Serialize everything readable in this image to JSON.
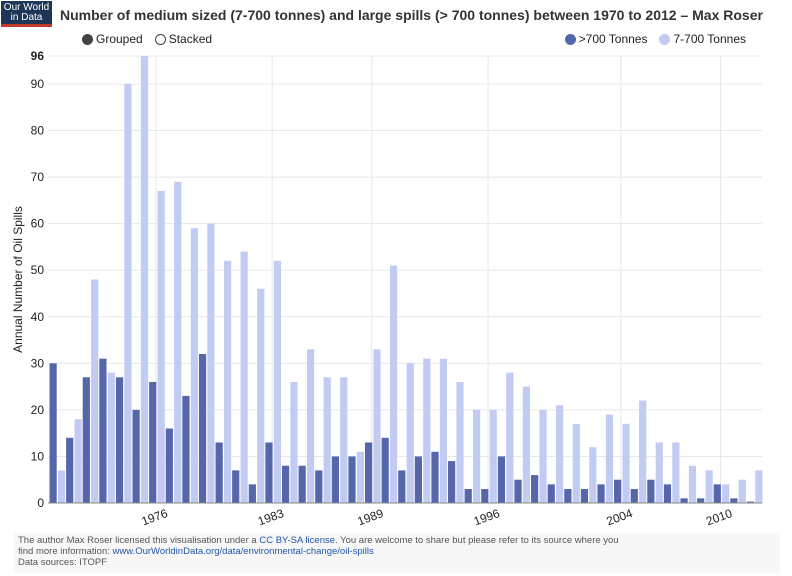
{
  "logo": {
    "line1": "Our World",
    "line2": "in Data"
  },
  "title": "Number of medium sized (7-700 tonnes) and large spills (> 700 tonnes) between 1970 to 2012 – Max Roser",
  "controls": {
    "grouped": "Grouped",
    "stacked": "Stacked"
  },
  "colors": {
    "large": "#5566aa",
    "medium": "#c2cbf2",
    "grid": "#e8e8e8"
  },
  "footer": {
    "line1_pre": "The author Max Roser licensed this visualisation under a ",
    "license": "CC BY-SA license",
    "line1_post": ". You are welcome to share but please refer to its source where you",
    "line2_pre": "find more information: ",
    "url": "www.OurWorldinData.org/data/environmental-change/oil-spills",
    "sources": "Data sources: ITOPF"
  },
  "chart_data": {
    "type": "bar",
    "ylabel": "Annual Number of Oil Spills",
    "ylim": [
      0,
      96
    ],
    "yticks": [
      0,
      10,
      20,
      30,
      40,
      50,
      60,
      70,
      80,
      90,
      96
    ],
    "xtick_labels": [
      "1976",
      "1983",
      "1989",
      "1996",
      "2004",
      "2010"
    ],
    "grid": true,
    "legend_position": "top-right",
    "x": [
      1970,
      1971,
      1972,
      1973,
      1974,
      1975,
      1976,
      1977,
      1978,
      1979,
      1980,
      1981,
      1982,
      1983,
      1984,
      1985,
      1986,
      1987,
      1988,
      1989,
      1990,
      1991,
      1992,
      1993,
      1994,
      1995,
      1996,
      1997,
      1998,
      1999,
      2000,
      2001,
      2002,
      2003,
      2004,
      2005,
      2006,
      2007,
      2008,
      2009,
      2010,
      2011,
      2012
    ],
    "series": [
      {
        "name": ">700 Tonnes",
        "values": [
          30,
          14,
          27,
          31,
          27,
          20,
          26,
          16,
          23,
          32,
          13,
          7,
          4,
          13,
          8,
          8,
          7,
          10,
          10,
          13,
          14,
          7,
          10,
          11,
          9,
          3,
          3,
          10,
          5,
          6,
          4,
          3,
          3,
          4,
          5,
          3,
          5,
          4,
          1,
          1,
          4,
          1,
          0.3
        ]
      },
      {
        "name": "7-700 Tonnes",
        "values": [
          7,
          18,
          48,
          28,
          90,
          96,
          67,
          69,
          59,
          60,
          52,
          54,
          46,
          52,
          26,
          33,
          27,
          27,
          11,
          33,
          51,
          30,
          31,
          31,
          26,
          20,
          20,
          28,
          25,
          20,
          21,
          17,
          12,
          19,
          17,
          22,
          13,
          13,
          8,
          7,
          4,
          5,
          7
        ]
      }
    ]
  }
}
